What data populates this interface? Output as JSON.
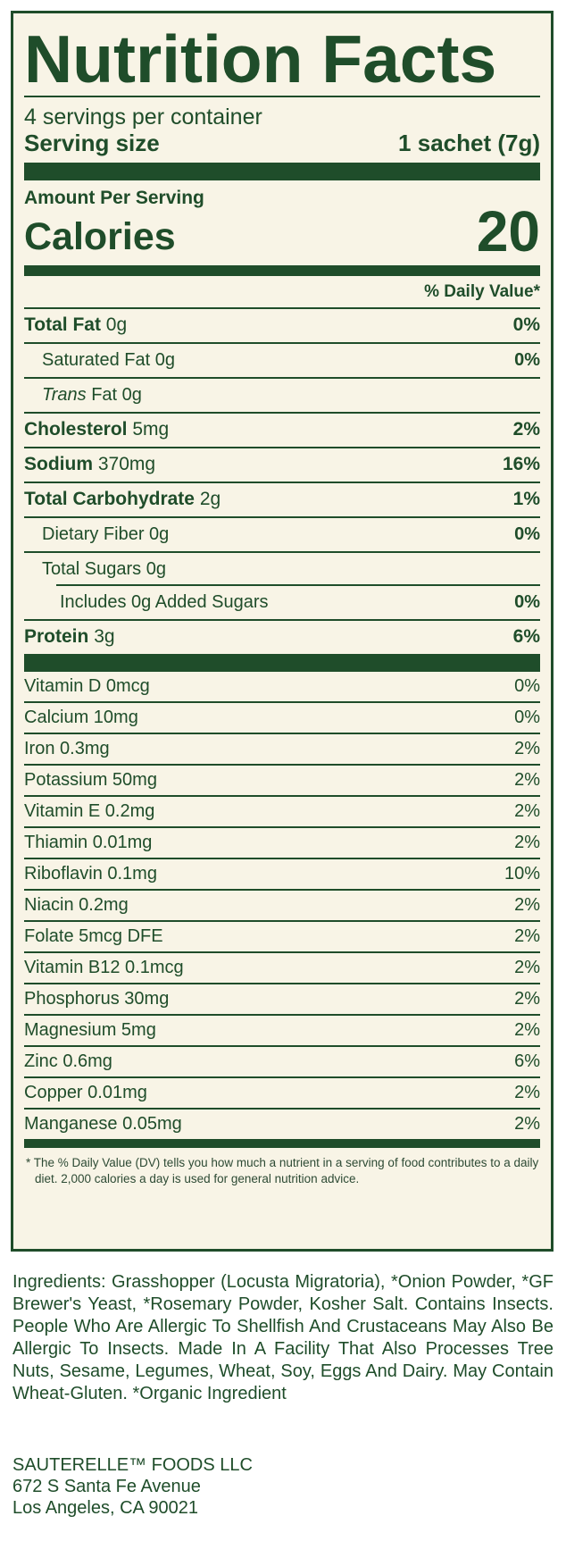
{
  "title": "Nutrition Facts",
  "servings_per_container": "4 servings per container",
  "serving_size": {
    "label": "Serving size",
    "value": "1 sachet (7g)"
  },
  "amount_per_serving": "Amount Per Serving",
  "calories": {
    "label": "Calories",
    "value": "20"
  },
  "daily_value_header": "% Daily Value*",
  "nutrients": [
    {
      "name": "Total Fat",
      "amount": "0g",
      "dv": "0%"
    },
    {
      "name": "Saturated Fat",
      "amount": "0g",
      "dv": "0%"
    },
    {
      "name": "Trans",
      "amount": "Fat 0g",
      "dv": ""
    },
    {
      "name": "Cholesterol",
      "amount": "5mg",
      "dv": "2%"
    },
    {
      "name": "Sodium",
      "amount": "370mg",
      "dv": "16%"
    },
    {
      "name": "Total Carbohydrate",
      "amount": "2g",
      "dv": "1%"
    },
    {
      "name": "Dietary Fiber",
      "amount": "0g",
      "dv": "0%"
    },
    {
      "name": "Total Sugars",
      "amount": "0g",
      "dv": ""
    },
    {
      "name": "Includes 0g Added Sugars",
      "amount": "",
      "dv": "0%"
    },
    {
      "name": "Protein",
      "amount": "3g",
      "dv": "6%"
    }
  ],
  "vitamins": [
    {
      "label": "Vitamin D 0mcg",
      "dv": "0%"
    },
    {
      "label": "Calcium 10mg",
      "dv": "0%"
    },
    {
      "label": "Iron 0.3mg",
      "dv": "2%"
    },
    {
      "label": "Potassium 50mg",
      "dv": "2%"
    },
    {
      "label": "Vitamin E 0.2mg",
      "dv": "2%"
    },
    {
      "label": "Thiamin 0.01mg",
      "dv": "2%"
    },
    {
      "label": "Riboflavin 0.1mg",
      "dv": "10%"
    },
    {
      "label": "Niacin 0.2mg",
      "dv": "2%"
    },
    {
      "label": "Folate 5mcg DFE",
      "dv": "2%"
    },
    {
      "label": "Vitamin B12 0.1mcg",
      "dv": "2%"
    },
    {
      "label": "Phosphorus 30mg",
      "dv": "2%"
    },
    {
      "label": "Magnesium 5mg",
      "dv": "2%"
    },
    {
      "label": "Zinc 0.6mg",
      "dv": "6%"
    },
    {
      "label": "Copper 0.01mg",
      "dv": "2%"
    },
    {
      "label": "Manganese 0.05mg",
      "dv": "2%"
    }
  ],
  "footnote": "* The % Daily Value (DV) tells you how much a nutrient in a serving of food contributes to a daily diet. 2,000 calories a day is used for general nutrition advice.",
  "ingredients": "Ingredients: Grasshopper (Locusta Migratoria), *Onion Powder, *GF Brewer's Yeast, *Rosemary Powder, Kosher Salt. Contains Insects. People Who Are Allergic To Shellfish And Crustaceans May Also Be Allergic To Insects. Made In A Facility That Also Processes Tree Nuts, Sesame, Legumes, Wheat, Soy, Eggs And Dairy. May Contain Wheat-Gluten. *Organic Ingredient",
  "address": {
    "company": "SAUTERELLE™ FOODS LLC",
    "street": "672 S Santa Fe Avenue",
    "city": "Los Angeles, CA 90021"
  },
  "colors": {
    "ink": "#1f4d2a",
    "panel": "#f8f4e6"
  }
}
